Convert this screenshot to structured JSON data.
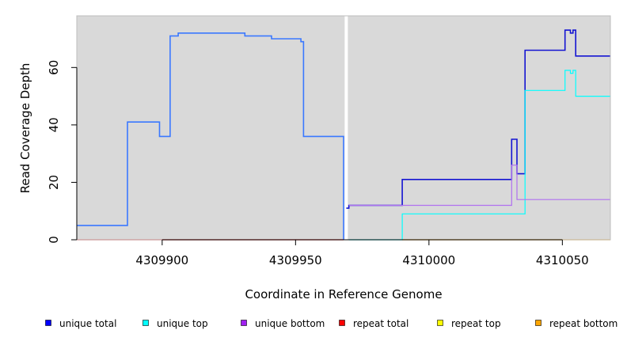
{
  "chart_data": {
    "type": "line",
    "xlabel": "Coordinate in Reference Genome",
    "ylabel": "Read Coverage Depth",
    "xlim": [
      4309868,
      4310068
    ],
    "ylim": [
      0,
      78
    ],
    "x_ticks": [
      4309900,
      4309950,
      4310000,
      4310050
    ],
    "x_tick_labels": [
      "4309900",
      "4309950",
      "4310000",
      "4310050"
    ],
    "y_ticks": [
      0,
      20,
      40,
      60
    ],
    "y_tick_labels": [
      "0",
      "20",
      "40",
      "60"
    ],
    "grid": false,
    "background": "#d9d9d9",
    "divider_x": 4309969,
    "legend_position": "bottom",
    "legend": [
      {
        "label": "unique total",
        "color": "#0000ff"
      },
      {
        "label": "unique top",
        "color": "#00ffff"
      },
      {
        "label": "unique bottom",
        "color": "#a020f0"
      },
      {
        "label": "repeat total",
        "color": "#ff0000"
      },
      {
        "label": "repeat top",
        "color": "#ffff00"
      },
      {
        "label": "repeat bottom",
        "color": "#ffa500"
      }
    ],
    "series": [
      {
        "key": "left_unique_total",
        "color": "#3a78ff",
        "width": 1.6,
        "x": [
          4309868,
          4309887,
          4309887,
          4309899,
          4309899,
          4309903,
          4309903,
          4309906,
          4309906,
          4309931,
          4309931,
          4309941,
          4309941,
          4309952,
          4309952,
          4309953,
          4309953,
          4309968,
          4309968
        ],
        "y": [
          5,
          5,
          41,
          41,
          36,
          36,
          71,
          71,
          72,
          72,
          71,
          71,
          70,
          70,
          69,
          69,
          36,
          36,
          0
        ]
      },
      {
        "key": "left_repeat_total",
        "color": "#ff0000",
        "width": 1.2,
        "x": [
          4309868,
          4309968
        ],
        "y": [
          0,
          0
        ]
      },
      {
        "key": "right_unique_total",
        "color": "#1414d2",
        "width": 1.6,
        "x": [
          4309969,
          4309970,
          4309970,
          4309990,
          4309990,
          4310031,
          4310031,
          4310033,
          4310033,
          4310036,
          4310036,
          4310051,
          4310051,
          4310053,
          4310053,
          4310054,
          4310054,
          4310055,
          4310055,
          4310068
        ],
        "y": [
          11,
          11,
          12,
          12,
          21,
          21,
          35,
          35,
          23,
          23,
          66,
          66,
          73,
          73,
          72,
          72,
          73,
          73,
          64,
          64
        ]
      },
      {
        "key": "right_unique_top",
        "color": "#00ffff",
        "width": 1.2,
        "x": [
          4309970,
          4309990,
          4309990,
          4310036,
          4310036,
          4310051,
          4310051,
          4310053,
          4310053,
          4310054,
          4310054,
          4310055,
          4310055,
          4310068
        ],
        "y": [
          0,
          0,
          9,
          9,
          52,
          52,
          59,
          59,
          58,
          58,
          59,
          59,
          50,
          50
        ]
      },
      {
        "key": "right_unique_bottom",
        "color": "#b070f0",
        "width": 1.2,
        "x": [
          4309970,
          4310031,
          4310031,
          4310033,
          4310033,
          4310068
        ],
        "y": [
          12,
          12,
          26,
          26,
          14,
          14
        ]
      },
      {
        "key": "right_repeat_bottom",
        "color": "#ffa500",
        "width": 1.2,
        "x": [
          4309990,
          4310068
        ],
        "y": [
          0,
          0
        ]
      }
    ]
  }
}
